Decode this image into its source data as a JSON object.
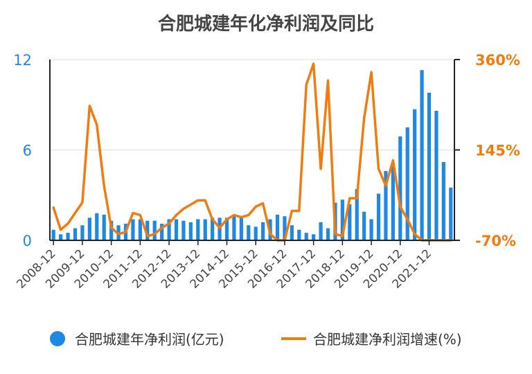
{
  "chart_data": {
    "type": "bar+line",
    "title": "合肥城建年化净利润及同比",
    "categories": [
      "2008-12",
      "2009-03",
      "2009-06",
      "2009-09",
      "2009-12",
      "2010-03",
      "2010-06",
      "2010-09",
      "2010-12",
      "2011-03",
      "2011-06",
      "2011-09",
      "2011-12",
      "2012-03",
      "2012-06",
      "2012-09",
      "2012-12",
      "2013-03",
      "2013-06",
      "2013-09",
      "2013-12",
      "2014-03",
      "2014-06",
      "2014-09",
      "2014-12",
      "2015-03",
      "2015-06",
      "2015-09",
      "2015-12",
      "2016-03",
      "2016-06",
      "2016-09",
      "2016-12",
      "2017-03",
      "2017-06",
      "2017-09",
      "2017-12",
      "2018-03",
      "2018-06",
      "2018-09",
      "2018-12",
      "2019-03",
      "2019-06",
      "2019-09",
      "2019-12",
      "2020-03",
      "2020-06",
      "2020-09",
      "2020-12",
      "2021-03",
      "2021-06",
      "2021-09",
      "2021-12",
      "2022-03",
      "2022-06",
      "2022-09"
    ],
    "x_tick_labels": [
      "2008-12",
      "2009-12",
      "2010-12",
      "2011-12",
      "2012-12",
      "2013-12",
      "2014-12",
      "2015-12",
      "2016-12",
      "2017-12",
      "2018-12",
      "2019-12",
      "2020-12",
      "2021-12"
    ],
    "y_left": {
      "ticks": [
        "0",
        "6",
        "12"
      ],
      "range": [
        0,
        12
      ],
      "color": "#1e88e5"
    },
    "y_right": {
      "ticks": [
        "-70%",
        "145%",
        "360%"
      ],
      "range": [
        -70,
        360
      ],
      "color": "#f07c10"
    },
    "grid": true,
    "legend_position": "bottom",
    "series": [
      {
        "name": "合肥城建年净利润(亿元)",
        "kind": "bar",
        "axis": "left",
        "color": "#1e88e5",
        "values": [
          0.7,
          0.4,
          0.5,
          0.8,
          1.0,
          1.5,
          1.8,
          1.7,
          1.3,
          1.0,
          1.1,
          1.4,
          1.4,
          1.3,
          1.3,
          1.1,
          1.4,
          1.4,
          1.3,
          1.2,
          1.4,
          1.4,
          1.5,
          1.5,
          1.5,
          1.6,
          1.5,
          1.0,
          0.9,
          1.2,
          1.4,
          1.7,
          1.6,
          1.0,
          0.7,
          0.5,
          0.4,
          1.2,
          0.8,
          2.5,
          2.7,
          2.4,
          3.4,
          1.9,
          1.4,
          3.1,
          4.6,
          4.9,
          6.9,
          7.5,
          8.7,
          11.3,
          9.8,
          8.6,
          5.2,
          3.5
        ]
      },
      {
        "name": "合肥城建净利润增速(%)",
        "kind": "line",
        "axis": "right",
        "color": "#f07c10",
        "values": [
          8,
          -45,
          -30,
          -5,
          20,
          250,
          205,
          60,
          -40,
          -55,
          -50,
          -5,
          -10,
          -60,
          -55,
          -40,
          -30,
          -10,
          5,
          15,
          25,
          25,
          -20,
          -40,
          -20,
          -10,
          -15,
          -10,
          10,
          18,
          -55,
          -70,
          -70,
          0,
          0,
          300,
          350,
          100,
          310,
          -55,
          -60,
          30,
          30,
          220,
          330,
          100,
          60,
          120,
          10,
          -20,
          -55,
          -70,
          -70,
          -70,
          -70,
          -70
        ]
      }
    ]
  }
}
